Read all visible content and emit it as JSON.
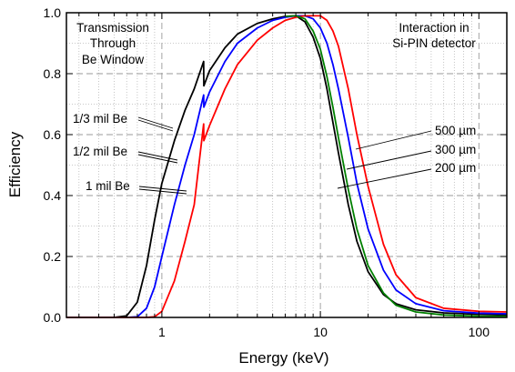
{
  "chart_data": {
    "type": "line",
    "xlabel": "Energy (keV)",
    "ylabel": "Efficiency",
    "x_scale": "log",
    "xlim": [
      0.25,
      150
    ],
    "ylim": [
      0.0,
      1.0
    ],
    "grid": true,
    "x_ticks": [
      {
        "value": 1,
        "label": "1"
      },
      {
        "value": 10,
        "label": "10"
      },
      {
        "value": 100,
        "label": "100"
      }
    ],
    "y_ticks": [
      {
        "value": 0.0,
        "label": "0.0"
      },
      {
        "value": 0.2,
        "label": "0.2"
      },
      {
        "value": 0.4,
        "label": "0.4"
      },
      {
        "value": 0.6,
        "label": "0.6"
      },
      {
        "value": 0.8,
        "label": "0.8"
      },
      {
        "value": 1.0,
        "label": "1.0"
      }
    ],
    "annotations": {
      "left_title": [
        "Transmission",
        "Through",
        "Be Window"
      ],
      "right_title": [
        "Interaction in",
        "Si-PIN detector"
      ],
      "be_labels": [
        "1/3 mil Be",
        "1/2 mil Be",
        "1 mil Be"
      ],
      "thickness_labels": [
        "500 µm",
        "300 µm",
        "200 µm"
      ]
    },
    "series": [
      {
        "color": "#000000",
        "points": [
          [
            0.25,
            0
          ],
          [
            0.5,
            0
          ],
          [
            0.6,
            0.005
          ],
          [
            0.7,
            0.05
          ],
          [
            0.8,
            0.17
          ],
          [
            0.9,
            0.32
          ],
          [
            1.0,
            0.44
          ],
          [
            1.2,
            0.58
          ],
          [
            1.4,
            0.68
          ],
          [
            1.6,
            0.75
          ],
          [
            1.835,
            0.84
          ],
          [
            1.84,
            0.76
          ],
          [
            2.0,
            0.81
          ],
          [
            2.5,
            0.885
          ],
          [
            3,
            0.93
          ],
          [
            4,
            0.965
          ],
          [
            5,
            0.98
          ],
          [
            6,
            0.988
          ],
          [
            7,
            0.99
          ],
          [
            8,
            0.97
          ],
          [
            9,
            0.92
          ],
          [
            10,
            0.85
          ],
          [
            11,
            0.75
          ],
          [
            12,
            0.64
          ],
          [
            13,
            0.54
          ],
          [
            15,
            0.37
          ],
          [
            17,
            0.25
          ],
          [
            20,
            0.15
          ],
          [
            25,
            0.075
          ],
          [
            30,
            0.045
          ],
          [
            40,
            0.025
          ],
          [
            60,
            0.015
          ],
          [
            100,
            0.01
          ],
          [
            150,
            0.008
          ]
        ]
      },
      {
        "color": "#0000ff",
        "points": [
          [
            0.25,
            0
          ],
          [
            0.6,
            0
          ],
          [
            0.7,
            0.002
          ],
          [
            0.8,
            0.03
          ],
          [
            0.9,
            0.1
          ],
          [
            1.0,
            0.2
          ],
          [
            1.2,
            0.37
          ],
          [
            1.4,
            0.5
          ],
          [
            1.6,
            0.6
          ],
          [
            1.835,
            0.73
          ],
          [
            1.84,
            0.69
          ],
          [
            2.0,
            0.74
          ],
          [
            2.5,
            0.84
          ],
          [
            3,
            0.9
          ],
          [
            4,
            0.95
          ],
          [
            5,
            0.975
          ],
          [
            6,
            0.985
          ],
          [
            7,
            0.99
          ],
          [
            8,
            0.99
          ],
          [
            9,
            0.98
          ],
          [
            10,
            0.95
          ],
          [
            11,
            0.9
          ],
          [
            12,
            0.83
          ],
          [
            13,
            0.75
          ],
          [
            15,
            0.59
          ],
          [
            17,
            0.44
          ],
          [
            20,
            0.29
          ],
          [
            25,
            0.155
          ],
          [
            30,
            0.09
          ],
          [
            40,
            0.045
          ],
          [
            60,
            0.022
          ],
          [
            100,
            0.014
          ],
          [
            150,
            0.012
          ]
        ]
      },
      {
        "color": "#ff0000",
        "points": [
          [
            0.25,
            0
          ],
          [
            0.8,
            0
          ],
          [
            0.9,
            0.002
          ],
          [
            1.0,
            0.02
          ],
          [
            1.2,
            0.12
          ],
          [
            1.4,
            0.25
          ],
          [
            1.6,
            0.37
          ],
          [
            1.835,
            0.635
          ],
          [
            1.84,
            0.58
          ],
          [
            2.0,
            0.63
          ],
          [
            2.5,
            0.75
          ],
          [
            3,
            0.83
          ],
          [
            4,
            0.91
          ],
          [
            5,
            0.95
          ],
          [
            6,
            0.975
          ],
          [
            7,
            0.985
          ],
          [
            8,
            0.99
          ],
          [
            10,
            0.99
          ],
          [
            11,
            0.975
          ],
          [
            12,
            0.94
          ],
          [
            13,
            0.89
          ],
          [
            15,
            0.75
          ],
          [
            17,
            0.6
          ],
          [
            20,
            0.43
          ],
          [
            25,
            0.24
          ],
          [
            30,
            0.14
          ],
          [
            40,
            0.065
          ],
          [
            60,
            0.03
          ],
          [
            100,
            0.02
          ],
          [
            150,
            0.018
          ]
        ]
      },
      {
        "color": "#008000",
        "points": [
          [
            6,
            0.988
          ],
          [
            7,
            0.99
          ],
          [
            8,
            0.98
          ],
          [
            9,
            0.94
          ],
          [
            10,
            0.88
          ],
          [
            11,
            0.79
          ],
          [
            12,
            0.69
          ],
          [
            13,
            0.59
          ],
          [
            15,
            0.42
          ],
          [
            17,
            0.29
          ],
          [
            20,
            0.17
          ],
          [
            25,
            0.08
          ],
          [
            30,
            0.04
          ],
          [
            40,
            0.018
          ],
          [
            60,
            0.008
          ],
          [
            100,
            0.004
          ],
          [
            150,
            0.003
          ]
        ]
      }
    ]
  }
}
